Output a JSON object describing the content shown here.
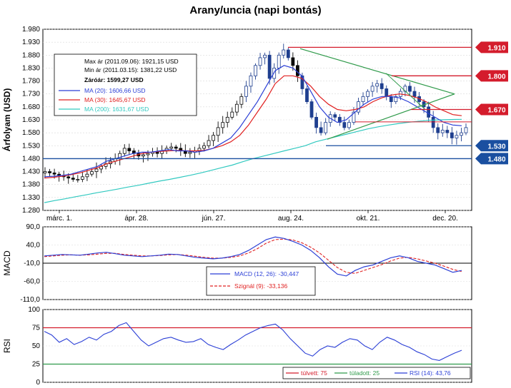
{
  "title": "Arany/uncia (napi bontás)",
  "colors": {
    "candle": "#0a0a0a",
    "candle_blue": "#1f3f8f",
    "ma20": "#2b3fd6",
    "ma30": "#e02020",
    "ma200": "#31c9c0",
    "hline_red": "#d41c2c",
    "hline_blue": "#1a4fa0",
    "trend_green": "#2f9a4a",
    "macd": "#2b3fd6",
    "signal": "#e02020",
    "rsi": "#2b3fd6",
    "overbought": "#d41c2c",
    "oversold": "#2f9a4a"
  },
  "chart_data": [
    {
      "type": "candlestick",
      "ylabel": "Árfolyam (USD)",
      "ylim": [
        1280,
        1980
      ],
      "y_ticks": [
        "1.980",
        "1.930",
        "1.880",
        "1.830",
        "1.780",
        "1.730",
        "1.680",
        "1.630",
        "1.580",
        "1.530",
        "1.480",
        "1.430",
        "1.380",
        "1.330",
        "1.280"
      ],
      "x_ticks": [
        "márc. 1.",
        "ápr. 28.",
        "jún. 27.",
        "aug. 24.",
        "okt. 21.",
        "dec. 20."
      ],
      "info_box": {
        "max_line": "Max ár (2011.09.06): 1921,15 USD",
        "min_line": "Min ár (2011.03.15): 1381,22 USD",
        "close_line": "Záróár: 1599,27 USD",
        "ma20_label": "MA (20): 1606,66 USD",
        "ma30_label": "MA (30): 1645,67 USD",
        "ma200_label": "MA (200): 1631,67 USD"
      },
      "levels": [
        {
          "label": "1.910",
          "value": 1910,
          "kind": "resistance"
        },
        {
          "label": "1.800",
          "value": 1800,
          "kind": "resistance"
        },
        {
          "label": "1.670",
          "value": 1670,
          "kind": "resistance"
        },
        {
          "label": "1.530",
          "value": 1530,
          "kind": "support"
        },
        {
          "label": "1.480",
          "value": 1480,
          "kind": "support"
        }
      ],
      "close_path": [
        1430,
        1425,
        1420,
        1415,
        1410,
        1405,
        1400,
        1400,
        1410,
        1420,
        1430,
        1440,
        1450,
        1460,
        1470,
        1480,
        1500,
        1520,
        1510,
        1500,
        1490,
        1495,
        1500,
        1505,
        1500,
        1510,
        1520,
        1525,
        1520,
        1510,
        1500,
        1505,
        1510,
        1520,
        1530,
        1550,
        1570,
        1600,
        1620,
        1640,
        1660,
        1690,
        1720,
        1760,
        1800,
        1840,
        1870,
        1880,
        1790,
        1830,
        1880,
        1900,
        1870,
        1840,
        1800,
        1750,
        1700,
        1640,
        1600,
        1580,
        1620,
        1650,
        1640,
        1620,
        1600,
        1620,
        1660,
        1700,
        1720,
        1740,
        1760,
        1770,
        1750,
        1720,
        1700,
        1720,
        1740,
        1760,
        1740,
        1720,
        1700,
        1680,
        1640,
        1600,
        1580,
        1590,
        1580,
        1560,
        1570,
        1580,
        1600
      ],
      "ma20_path": [
        1410,
        1412,
        1415,
        1420,
        1430,
        1440,
        1450,
        1470,
        1480,
        1490,
        1500,
        1505,
        1505,
        1510,
        1515,
        1510,
        1510,
        1505,
        1510,
        1520,
        1540,
        1560,
        1600,
        1650,
        1700,
        1760,
        1820,
        1840,
        1830,
        1800,
        1740,
        1680,
        1640,
        1620,
        1630,
        1660,
        1690,
        1710,
        1720,
        1720,
        1715,
        1700,
        1680,
        1660,
        1640,
        1620,
        1610,
        1607
      ],
      "ma30_path": [
        1405,
        1408,
        1412,
        1418,
        1425,
        1435,
        1445,
        1460,
        1470,
        1480,
        1490,
        1500,
        1505,
        1508,
        1510,
        1512,
        1510,
        1510,
        1512,
        1520,
        1530,
        1545,
        1570,
        1610,
        1660,
        1710,
        1770,
        1800,
        1800,
        1790,
        1760,
        1720,
        1690,
        1670,
        1665,
        1670,
        1680,
        1700,
        1715,
        1725,
        1730,
        1725,
        1715,
        1700,
        1680,
        1665,
        1650,
        1646
      ],
      "ma200_path": [
        1310,
        1318,
        1325,
        1333,
        1340,
        1348,
        1355,
        1362,
        1370,
        1377,
        1385,
        1393,
        1400,
        1408,
        1416,
        1425,
        1435,
        1445,
        1455,
        1468,
        1480,
        1490,
        1500,
        1510,
        1520,
        1530,
        1545,
        1555,
        1565,
        1575,
        1585,
        1595,
        1603,
        1610,
        1616,
        1621,
        1625,
        1628,
        1630,
        1631,
        1632
      ]
    },
    {
      "type": "line",
      "ylabel": "MACD",
      "ylim": [
        -110,
        90
      ],
      "y_ticks": [
        "90,0",
        "40,0",
        "-10,0",
        "-60,0",
        "-110,0"
      ],
      "series": [
        {
          "name": "MACD (12, 26): -30,447",
          "values": [
            10,
            12,
            14,
            13,
            12,
            15,
            18,
            20,
            16,
            12,
            10,
            8,
            10,
            12,
            15,
            14,
            10,
            6,
            4,
            2,
            4,
            8,
            14,
            25,
            40,
            55,
            62,
            58,
            50,
            40,
            25,
            5,
            -20,
            -40,
            -45,
            -30,
            -20,
            -15,
            -5,
            5,
            10,
            5,
            -5,
            -10,
            -15,
            -25,
            -35,
            -30
          ]
        },
        {
          "name": "Szignál (9): -33,136",
          "values": [
            8,
            10,
            12,
            13,
            12,
            13,
            15,
            17,
            17,
            14,
            12,
            10,
            10,
            11,
            13,
            14,
            12,
            9,
            6,
            4,
            4,
            6,
            10,
            18,
            30,
            45,
            55,
            56,
            54,
            46,
            34,
            18,
            -2,
            -22,
            -35,
            -38,
            -30,
            -22,
            -14,
            -4,
            4,
            6,
            2,
            -4,
            -10,
            -18,
            -27,
            -33
          ]
        }
      ]
    },
    {
      "type": "line",
      "ylabel": "RSI",
      "ylim": [
        0,
        100
      ],
      "y_ticks": [
        "100",
        "75",
        "50",
        "25",
        "0"
      ],
      "thresholds": [
        {
          "name": "túlvett: 75",
          "value": 75
        },
        {
          "name": "túladott: 25",
          "value": 25
        }
      ],
      "series": [
        {
          "name": "RSI (14): 43,76",
          "values": [
            70,
            65,
            55,
            60,
            52,
            56,
            62,
            58,
            66,
            70,
            78,
            82,
            70,
            58,
            50,
            55,
            60,
            62,
            58,
            55,
            56,
            60,
            52,
            48,
            45,
            52,
            58,
            65,
            70,
            75,
            78,
            80,
            72,
            60,
            50,
            40,
            36,
            45,
            50,
            48,
            55,
            60,
            58,
            50,
            45,
            55,
            62,
            58,
            52,
            48,
            42,
            38,
            32,
            30,
            35,
            40,
            44
          ]
        }
      ]
    }
  ]
}
